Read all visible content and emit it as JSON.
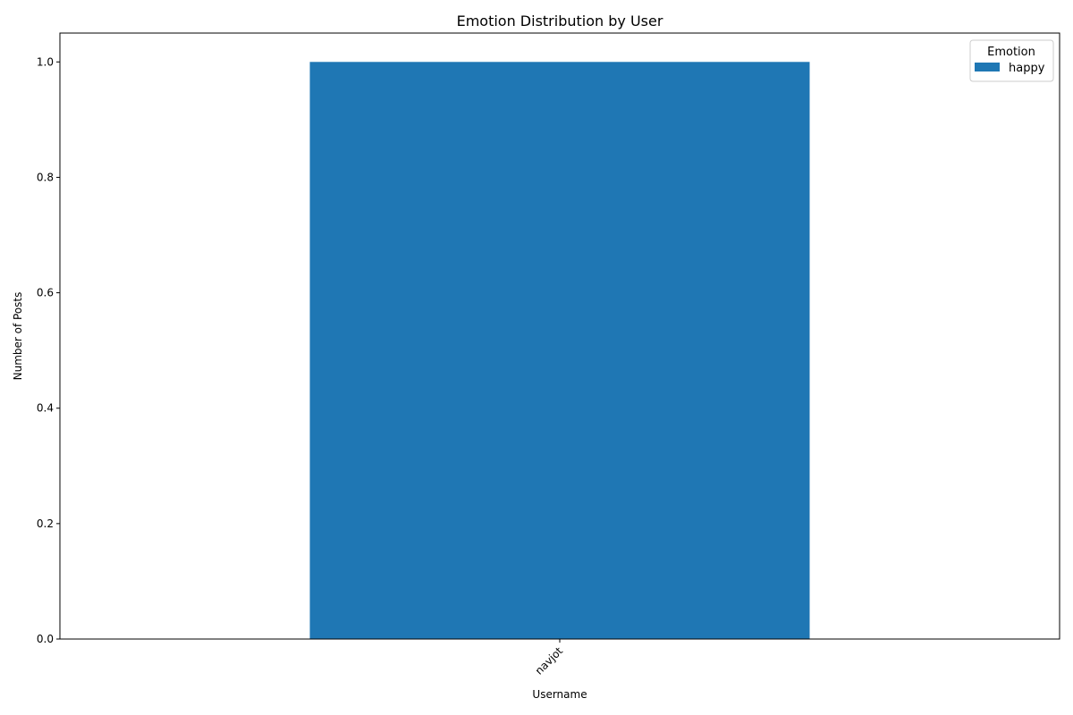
{
  "chart_data": {
    "type": "bar",
    "title": "Emotion Distribution by User",
    "xlabel": "Username",
    "ylabel": "Number of Posts",
    "categories": [
      "navjot"
    ],
    "series": [
      {
        "name": "happy",
        "values": [
          1.0
        ]
      }
    ],
    "ylim": [
      0,
      1.05
    ],
    "yticks": [
      "0.0",
      "0.2",
      "0.4",
      "0.6",
      "0.8",
      "1.0"
    ],
    "grid": false,
    "legend": {
      "title": "Emotion",
      "placement": "top-right"
    },
    "colors": {
      "happy": "#1f77b4"
    }
  }
}
